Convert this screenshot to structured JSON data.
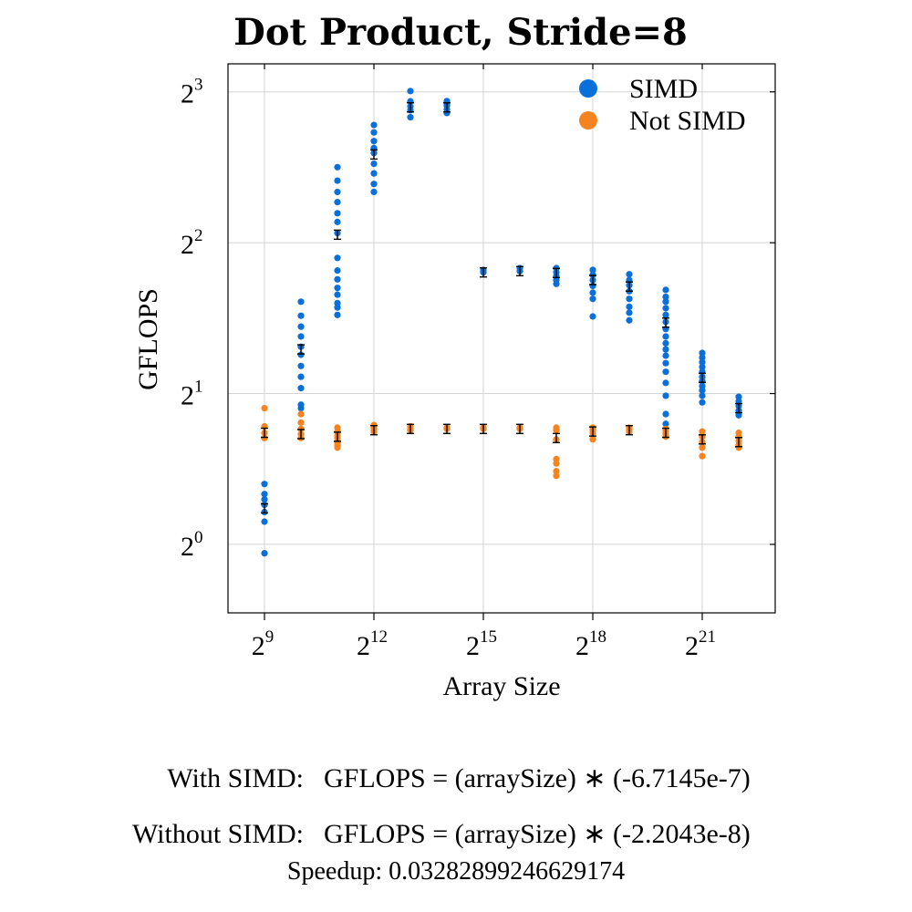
{
  "chart_data": {
    "type": "scatter",
    "title": "Dot Product, Stride=8",
    "xlabel": "Array Size",
    "ylabel": "GFLOPS",
    "x_scale": "log2",
    "y_scale": "log2",
    "xlim": [
      256,
      8388608
    ],
    "ylim": [
      0.73,
      9.1
    ],
    "x_ticks": [
      {
        "base": "2",
        "exp": "9",
        "value": 512
      },
      {
        "base": "2",
        "exp": "12",
        "value": 4096
      },
      {
        "base": "2",
        "exp": "15",
        "value": 32768
      },
      {
        "base": "2",
        "exp": "18",
        "value": 262144
      },
      {
        "base": "2",
        "exp": "21",
        "value": 2097152
      }
    ],
    "y_ticks": [
      {
        "base": "2",
        "exp": "0",
        "value": 1
      },
      {
        "base": "2",
        "exp": "1",
        "value": 2
      },
      {
        "base": "2",
        "exp": "2",
        "value": 4
      },
      {
        "base": "2",
        "exp": "3",
        "value": 8
      }
    ],
    "grid": true,
    "legend_position": "top-right",
    "series": [
      {
        "name": "SIMD",
        "color": "#0a6fd8",
        "points": [
          [
            512,
            [
              1.32,
              1.26,
              1.23,
              1.2,
              1.16,
              1.11,
              0.96
            ]
          ],
          [
            1024,
            [
              3.05,
              2.86,
              2.72,
              2.6,
              2.48,
              2.39,
              2.27,
              2.16,
              2.05,
              1.9,
              1.87
            ]
          ],
          [
            2048,
            [
              5.66,
              5.32,
              5.05,
              4.82,
              4.58,
              4.4,
              4.18,
              3.73,
              3.52,
              3.38,
              3.25,
              3.15,
              3.03,
              2.97,
              2.87
            ]
          ],
          [
            4096,
            [
              6.87,
              6.64,
              6.38,
              6.18,
              6.04,
              5.75,
              5.5,
              5.24,
              5.05
            ]
          ],
          [
            8192,
            [
              8.03,
              7.66,
              7.48,
              7.35,
              7.12
            ]
          ],
          [
            16384,
            [
              7.67,
              7.58,
              7.5,
              7.38,
              7.26
            ]
          ],
          [
            32768,
            [
              3.53,
              3.49
            ]
          ],
          [
            65536,
            [
              3.56,
              3.51
            ]
          ],
          [
            131072,
            [
              3.56,
              3.49,
              3.43,
              3.37,
              3.31
            ]
          ],
          [
            262144,
            [
              3.53,
              3.45,
              3.37,
              3.28,
              3.18,
              3.09,
              2.85
            ]
          ],
          [
            524288,
            [
              3.46,
              3.37,
              3.29,
              3.2,
              3.09,
              2.98,
              2.9,
              2.8
            ]
          ],
          [
            1048576,
            [
              3.22,
              3.12,
              3.05,
              2.96,
              2.87,
              2.78,
              2.69,
              2.6,
              2.52,
              2.45,
              2.38,
              2.3,
              2.21,
              2.1,
              1.98,
              1.82,
              1.74
            ]
          ],
          [
            2097152,
            [
              2.41,
              2.36,
              2.31,
              2.26,
              2.21,
              2.16,
              2.12,
              2.07,
              2.03,
              1.98,
              1.92
            ]
          ],
          [
            4194304,
            [
              1.97,
              1.93,
              1.89,
              1.85,
              1.81
            ]
          ]
        ],
        "means": [
          [
            512,
            1.18
          ],
          [
            1024,
            2.45
          ],
          [
            2048,
            4.15
          ],
          [
            4096,
            6.0
          ],
          [
            8192,
            7.45
          ],
          [
            16384,
            7.45
          ],
          [
            32768,
            3.49
          ],
          [
            65536,
            3.51
          ],
          [
            131072,
            3.48
          ],
          [
            262144,
            3.37
          ],
          [
            524288,
            3.27
          ],
          [
            1048576,
            2.77
          ],
          [
            2097152,
            2.15
          ],
          [
            4194304,
            1.87
          ]
        ]
      },
      {
        "name": "Not SIMD",
        "color": "#f5831f",
        "points": [
          [
            512,
            [
              1.87,
              1.72,
              1.67,
              1.63
            ]
          ],
          [
            1024,
            [
              1.82,
              1.75,
              1.7,
              1.66,
              1.63
            ]
          ],
          [
            2048,
            [
              1.71,
              1.68,
              1.65,
              1.63,
              1.6,
              1.58,
              1.56
            ]
          ],
          [
            4096,
            [
              1.73,
              1.71,
              1.69,
              1.68
            ]
          ],
          [
            8192,
            [
              1.72,
              1.7,
              1.69
            ]
          ],
          [
            16384,
            [
              1.71,
              1.7
            ]
          ],
          [
            32768,
            [
              1.71,
              1.7
            ]
          ],
          [
            65536,
            [
              1.71,
              1.7
            ]
          ],
          [
            131072,
            [
              1.71,
              1.69,
              1.62,
              1.48,
              1.45,
              1.4,
              1.37
            ]
          ],
          [
            262144,
            [
              1.71,
              1.69,
              1.67,
              1.62
            ]
          ],
          [
            524288,
            [
              1.71,
              1.69,
              1.68
            ]
          ],
          [
            1048576,
            [
              1.7,
              1.68,
              1.66,
              1.64
            ]
          ],
          [
            2097152,
            [
              1.68,
              1.64,
              1.6,
              1.56,
              1.5
            ]
          ],
          [
            4194304,
            [
              1.67,
              1.64,
              1.61,
              1.58,
              1.56
            ]
          ]
        ],
        "means": [
          [
            512,
            1.67
          ],
          [
            1024,
            1.66
          ],
          [
            2048,
            1.64
          ],
          [
            4096,
            1.69
          ],
          [
            8192,
            1.7
          ],
          [
            16384,
            1.7
          ],
          [
            32768,
            1.7
          ],
          [
            65536,
            1.7
          ],
          [
            131072,
            1.63
          ],
          [
            262144,
            1.68
          ],
          [
            524288,
            1.69
          ],
          [
            1048576,
            1.67
          ],
          [
            2097152,
            1.62
          ],
          [
            4194304,
            1.6
          ]
        ]
      }
    ]
  },
  "formulas": {
    "simd_label": "With SIMD:",
    "simd_expr": "GFLOPS = (arraySize) ∗ (-6.7145e-7)",
    "nosimd_label": "Without SIMD:",
    "nosimd_expr": "GFLOPS = (arraySize) ∗ (-2.2043e-8)"
  },
  "speedup": "Speedup: 0.03282899246629174"
}
